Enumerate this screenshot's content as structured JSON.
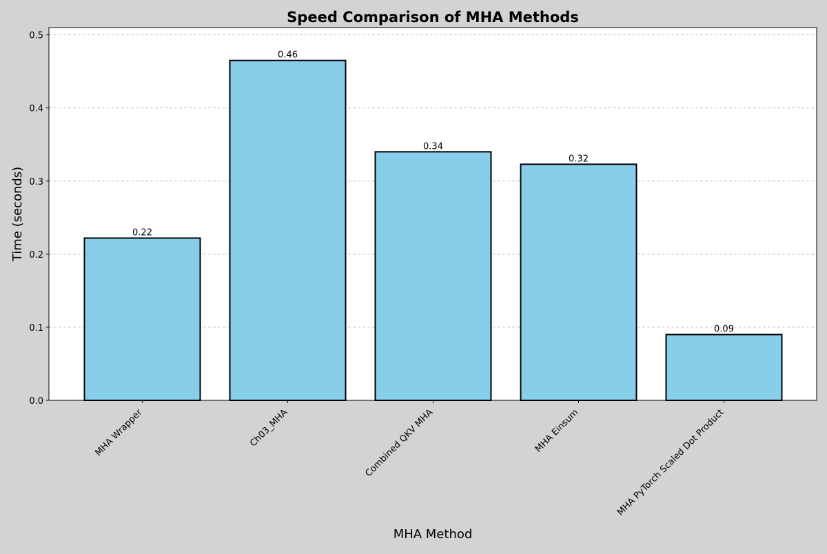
{
  "chart_data": {
    "type": "bar",
    "title": "Speed Comparison of MHA Methods",
    "xlabel": "MHA Method",
    "ylabel": "Time (seconds)",
    "categories": [
      "MHA Wrapper",
      "Ch03_MHA",
      "Combined QKV MHA",
      "MHA Einsum",
      "MHA PyTorch Scaled Dot Product"
    ],
    "values": [
      0.222,
      0.465,
      0.34,
      0.323,
      0.09
    ],
    "value_labels": [
      "0.22",
      "0.46",
      "0.34",
      "0.32",
      "0.09"
    ],
    "ylim": [
      0,
      0.51
    ],
    "yticks": [
      0.0,
      0.1,
      0.2,
      0.3,
      0.4,
      0.5
    ],
    "ytick_labels": [
      "0.0",
      "0.1",
      "0.2",
      "0.3",
      "0.4",
      "0.5"
    ],
    "grid": "y-dashed",
    "colors": {
      "bar_fill": "#87ceeb",
      "bar_edge": "#000000",
      "figure_bg": "#d3d3d3",
      "plot_bg": "#ffffff",
      "grid": "#c0c0c0"
    }
  }
}
